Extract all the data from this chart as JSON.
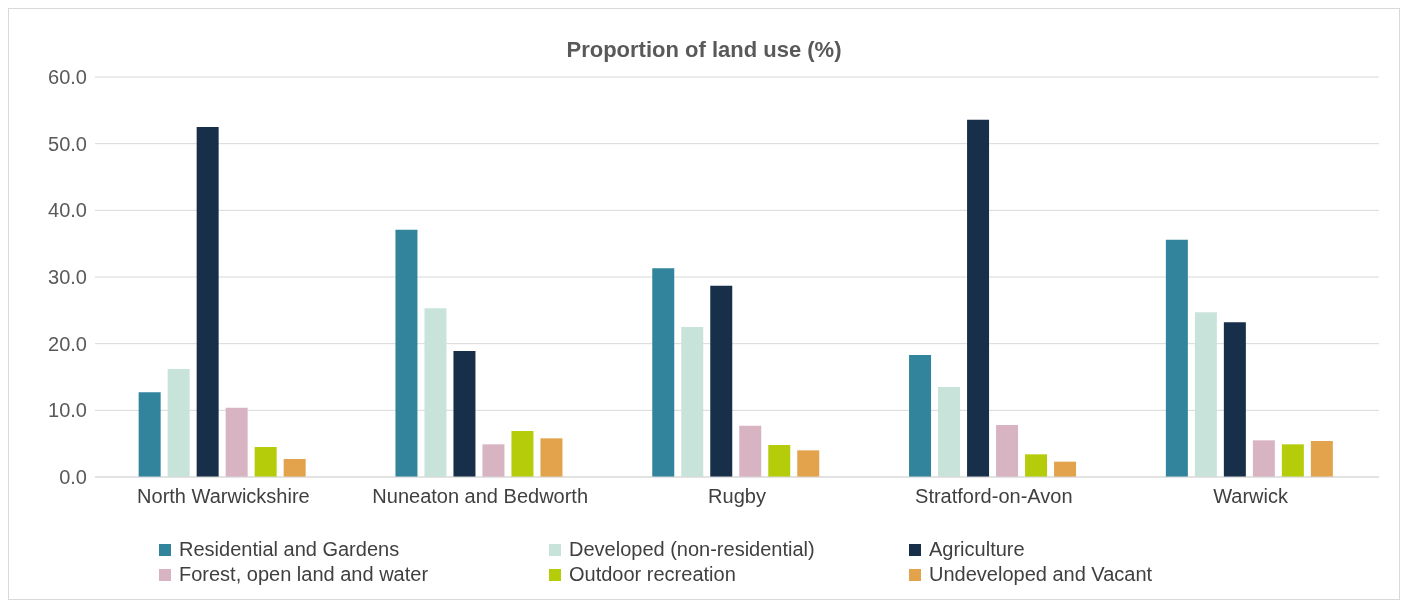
{
  "chart_data": {
    "type": "bar",
    "title": "Proportion of land use (%)",
    "categories": [
      "North Warwickshire",
      "Nuneaton and Bedworth",
      "Rugby",
      "Stratford-on-Avon",
      "Warwick"
    ],
    "series": [
      {
        "name": "Residential and Gardens",
        "color": "#31849b",
        "values": [
          12.7,
          37.1,
          31.3,
          18.3,
          35.6
        ]
      },
      {
        "name": "Developed (non-residential)",
        "color": "#c8e3d9",
        "values": [
          16.2,
          25.3,
          22.5,
          13.5,
          24.7
        ]
      },
      {
        "name": "Agriculture",
        "color": "#172f48",
        "values": [
          52.5,
          18.9,
          28.7,
          53.6,
          23.2
        ]
      },
      {
        "name": "Forest, open land and water",
        "color": "#d8b4c3",
        "values": [
          10.4,
          4.9,
          7.7,
          7.8,
          5.5
        ]
      },
      {
        "name": "Outdoor recreation",
        "color": "#b5cc0a",
        "values": [
          4.5,
          6.9,
          4.8,
          3.4,
          4.9
        ]
      },
      {
        "name": "Undeveloped and Vacant",
        "color": "#e3a34d",
        "values": [
          2.7,
          5.8,
          4.0,
          2.3,
          5.4
        ]
      }
    ],
    "ylim": [
      0,
      60
    ],
    "yticks": [
      {
        "value": 0,
        "label": "0.0"
      },
      {
        "value": 10,
        "label": "10.0"
      },
      {
        "value": 20,
        "label": "20.0"
      },
      {
        "value": 30,
        "label": "30.0"
      },
      {
        "value": 40,
        "label": "40.0"
      },
      {
        "value": 50,
        "label": "50.0"
      },
      {
        "value": 60,
        "label": "60.0"
      }
    ],
    "grid": "y",
    "legend": "bottom"
  }
}
